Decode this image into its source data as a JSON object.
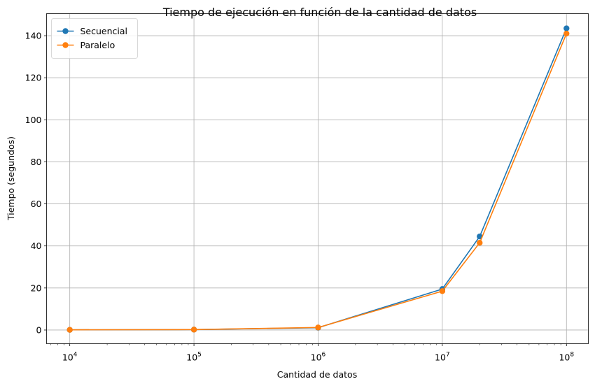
{
  "chart_data": {
    "type": "line",
    "title": "Tiempo de ejecución en función de la cantidad de datos",
    "xlabel": "Cantidad de datos",
    "ylabel": "Tiempo (segundos)",
    "xscale": "log",
    "xlim": [
      6500,
      150000000
    ],
    "ylim": [
      -6.5,
      150.5
    ],
    "grid": true,
    "legend_position": "top-left",
    "x": [
      10000,
      100000,
      1000000,
      10000000,
      20000000,
      100000000
    ],
    "x_tick_labels": [
      {
        "value": 10000,
        "base": "10",
        "exp": "4"
      },
      {
        "value": 100000,
        "base": "10",
        "exp": "5"
      },
      {
        "value": 1000000,
        "base": "10",
        "exp": "6"
      },
      {
        "value": 10000000,
        "base": "10",
        "exp": "7"
      },
      {
        "value": 100000000,
        "base": "10",
        "exp": "8"
      }
    ],
    "y_ticks": [
      0,
      20,
      40,
      60,
      80,
      100,
      120,
      140
    ],
    "series": [
      {
        "name": "Secuencial",
        "color": "#1f77b4",
        "values": [
          0.1,
          0.2,
          1.1,
          19.5,
          44.5,
          143.5
        ]
      },
      {
        "name": "Paralelo",
        "color": "#ff7f0e",
        "values": [
          0.1,
          0.2,
          1.2,
          18.5,
          41.5,
          141.0
        ]
      }
    ]
  }
}
